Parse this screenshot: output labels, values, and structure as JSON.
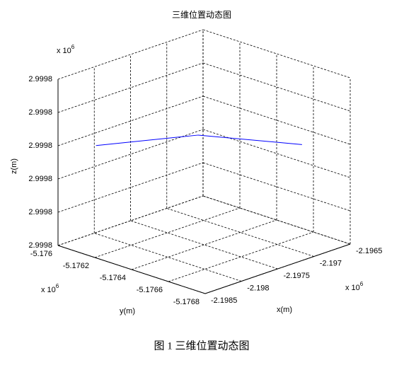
{
  "chart_data": {
    "type": "line3d",
    "title": "三维位置动态图",
    "xlabel": "x(m)",
    "ylabel": "y(m)",
    "zlabel": "z(m)",
    "x_multiplier": {
      "base": "x 10",
      "power": "6"
    },
    "y_multiplier": {
      "base": "x 10",
      "power": "6"
    },
    "z_multiplier": {
      "base": "x 10",
      "power": "6"
    },
    "xlim": [
      -2.1985,
      -2.1965
    ],
    "xticks": [
      -2.1985,
      -2.198,
      -2.1975,
      -2.197,
      -2.1965
    ],
    "ylim": [
      -5.1768,
      -5.176
    ],
    "yticks": [
      -5.1768,
      -5.1766,
      -5.1764,
      -5.1762,
      -5.176
    ],
    "zlim": [
      2.99978,
      2.99983
    ],
    "zticks": [
      {
        "value": 2.99978,
        "label": "2.9998"
      },
      {
        "value": 2.99979,
        "label": "2.9998"
      },
      2.9998,
      {
        "value": 2.99981,
        "label": "2.9998"
      },
      {
        "value": 2.99982,
        "label": "2.9998"
      },
      {
        "value": 2.99983,
        "label": "2.9998"
      }
    ],
    "grid": true,
    "series": [
      {
        "color": "#0000ff",
        "x": [
          -2.19824,
          -2.19754,
          -2.19683
        ],
        "y": [
          -5.176104,
          -5.176384,
          -5.176668
        ],
        "z": [
          2.99981,
          2.999813,
          2.99981
        ]
      }
    ]
  },
  "caption": "图 1 三维位置动态图"
}
